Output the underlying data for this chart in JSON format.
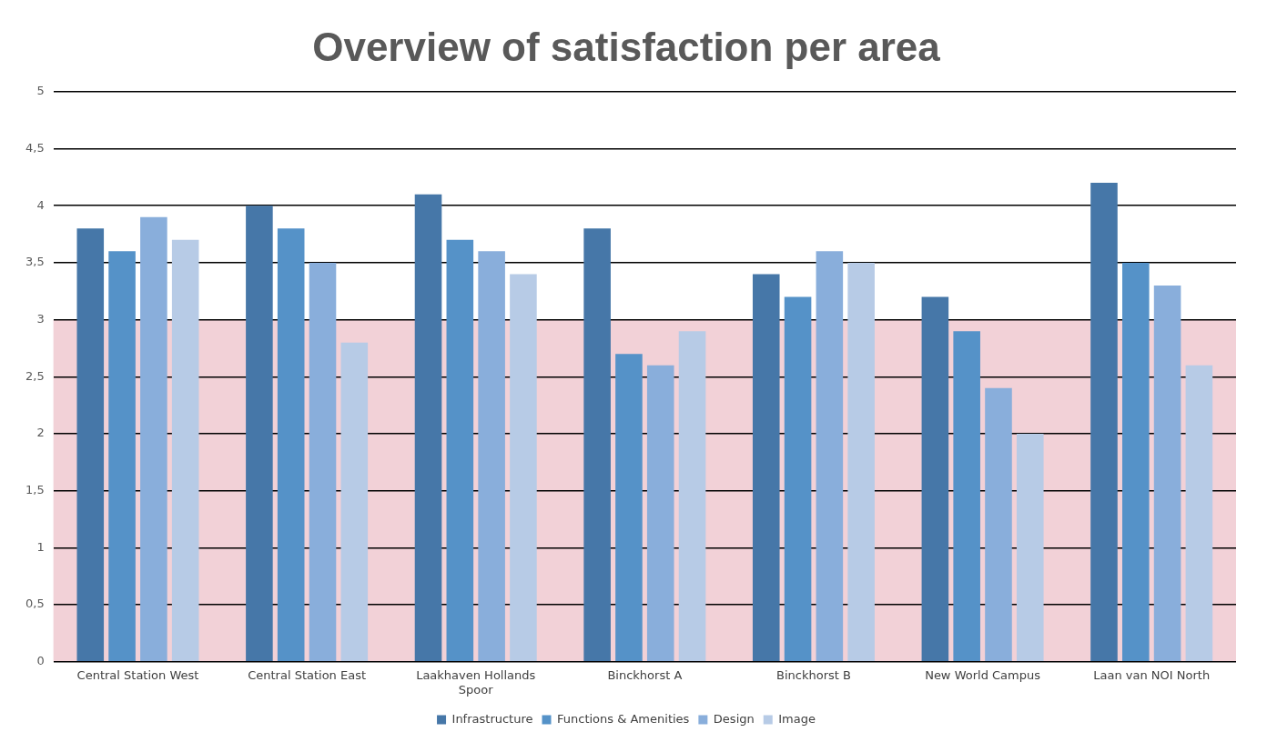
{
  "chart_data": {
    "type": "bar",
    "title": "Overview of satisfaction per area",
    "categories": [
      "Central Station West",
      "Central Station East",
      "Laakhaven Hollands Spoor",
      "Binckhorst A",
      "Binckhorst B",
      "New World Campus",
      "Laan van NOI North"
    ],
    "series": [
      {
        "name": "Infrastructure",
        "color": "#4677a8",
        "values": [
          3.8,
          4.0,
          4.1,
          3.8,
          3.4,
          3.2,
          4.2
        ]
      },
      {
        "name": "Functions & Amenities",
        "color": "#5592c8",
        "values": [
          3.6,
          3.8,
          3.7,
          2.7,
          3.2,
          2.9,
          3.5
        ]
      },
      {
        "name": "Design",
        "color": "#89aedb",
        "values": [
          3.9,
          3.5,
          3.6,
          2.6,
          3.6,
          2.4,
          3.3
        ]
      },
      {
        "name": "Image",
        "color": "#b7cbe6",
        "values": [
          3.7,
          2.8,
          3.4,
          2.9,
          3.5,
          2.0,
          2.6
        ]
      }
    ],
    "ylim": [
      0,
      5
    ],
    "yticks": [
      0,
      {
        "value": 0.5,
        "label": "0,5"
      },
      1,
      {
        "value": 1.5,
        "label": "1,5"
      },
      2,
      {
        "value": 2.5,
        "label": "2,5"
      },
      3,
      {
        "value": 3.5,
        "label": "3,5"
      },
      4,
      {
        "value": 4.5,
        "label": "4,5"
      },
      5
    ],
    "bands": [
      {
        "axis": "y",
        "from": 0,
        "to": 3,
        "color": "#f2d1d7"
      }
    ],
    "grid": "y",
    "legend": "bottom"
  }
}
